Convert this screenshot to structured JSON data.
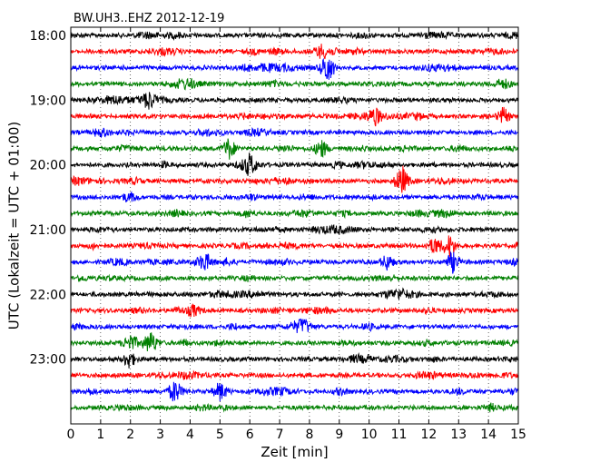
{
  "chart_data": {
    "type": "line",
    "title": "BW.UH3..EHZ 2012-12-19",
    "xlabel": "Zeit  [min]",
    "ylabel": "UTC (Lokalzeit = UTC + 01:00)",
    "xlim": [
      0,
      15
    ],
    "x_ticks": [
      "0",
      "1",
      "2",
      "3",
      "4",
      "5",
      "6",
      "7",
      "8",
      "9",
      "10",
      "11",
      "12",
      "13",
      "14",
      "15"
    ],
    "y_tick_labels": [
      "18:00",
      "19:00",
      "20:00",
      "21:00",
      "22:00",
      "23:00"
    ],
    "row_start_times": [
      "18:00",
      "18:15",
      "18:30",
      "18:45",
      "19:00",
      "19:15",
      "19:30",
      "19:45",
      "20:00",
      "20:15",
      "20:30",
      "20:45",
      "21:00",
      "21:15",
      "21:30",
      "21:45",
      "22:00",
      "22:15",
      "22:30",
      "22:45",
      "23:00",
      "23:15",
      "23:30",
      "23:45"
    ],
    "trace_colors": [
      "#000000",
      "#ff0000",
      "#0000ff",
      "#008000"
    ],
    "grid": "dotted vertical at each minute",
    "notable_events": [
      {
        "row": 2,
        "x_min": 8.6,
        "strength": 0.95
      },
      {
        "row": 8,
        "x_min": 6.0,
        "strength": 0.6
      },
      {
        "row": 7,
        "x_min": 5.3,
        "strength": 0.6
      },
      {
        "row": 7,
        "x_min": 8.4,
        "strength": 0.5
      },
      {
        "row": 9,
        "x_min": 11.1,
        "strength": 0.9
      },
      {
        "row": 13,
        "x_min": 12.7,
        "strength": 0.6
      },
      {
        "row": 13,
        "x_min": 12.2,
        "strength": 0.5
      },
      {
        "row": 14,
        "x_min": 12.8,
        "strength": 0.6
      },
      {
        "row": 14,
        "x_min": 4.5,
        "strength": 0.45
      },
      {
        "row": 14,
        "x_min": 10.6,
        "strength": 0.45
      },
      {
        "row": 22,
        "x_min": 3.5,
        "strength": 0.7
      },
      {
        "row": 22,
        "x_min": 5.0,
        "strength": 0.55
      },
      {
        "row": 20,
        "x_min": 1.95,
        "strength": 0.5
      },
      {
        "row": 19,
        "x_min": 2.7,
        "strength": 0.6
      },
      {
        "row": 19,
        "x_min": 2.0,
        "strength": 0.55
      },
      {
        "row": 5,
        "x_min": 10.2,
        "strength": 0.45
      },
      {
        "row": 5,
        "x_min": 14.5,
        "strength": 0.45
      },
      {
        "row": 4,
        "x_min": 2.6,
        "strength": 0.45
      },
      {
        "row": 1,
        "x_min": 8.4,
        "strength": 0.35
      },
      {
        "row": 18,
        "x_min": 7.8,
        "strength": 0.35
      },
      {
        "row": 17,
        "x_min": 4.1,
        "strength": 0.35
      }
    ]
  }
}
